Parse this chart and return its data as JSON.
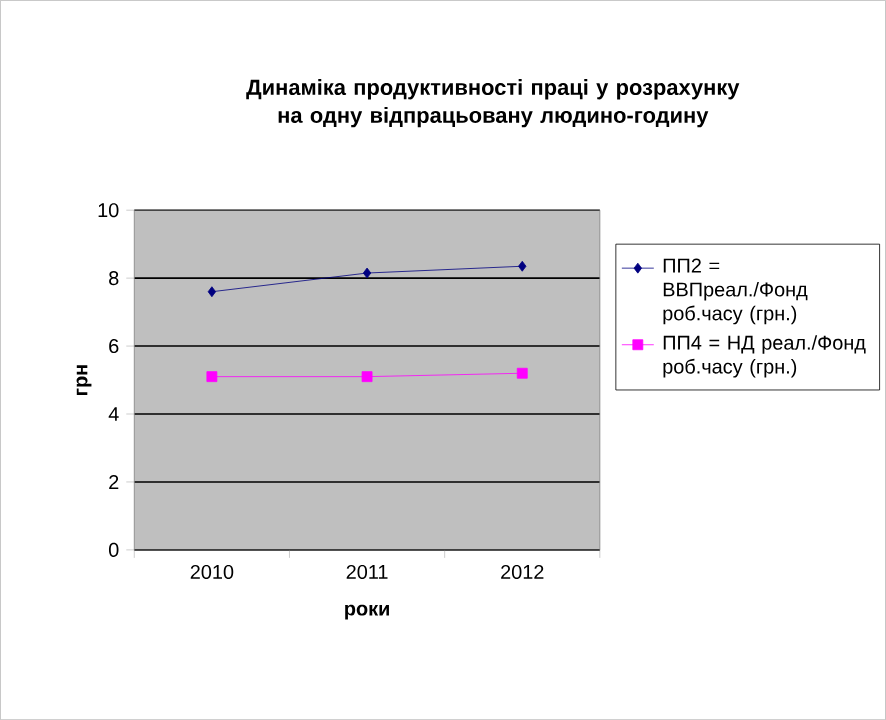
{
  "chart_data": {
    "type": "line",
    "title": "Динаміка продуктивності праці у розрахунку на одну відпрацьовану людино-годину",
    "xlabel": "роки",
    "ylabel": "грн",
    "categories": [
      "2010",
      "2011",
      "2012"
    ],
    "series": [
      {
        "name": "ПП2 = ВВПреал./Фонд роб.часу (грн.)",
        "color": "#000080",
        "marker": "diamond",
        "values": [
          7.6,
          8.15,
          8.35
        ]
      },
      {
        "name": "ПП4 = НД реал./Фонд роб.часу (грн.)",
        "color": "#ff00ff",
        "marker": "square",
        "values": [
          5.1,
          5.1,
          5.2
        ]
      }
    ],
    "ylim": [
      0,
      10
    ],
    "yticks": [
      0,
      2,
      4,
      6,
      8,
      10
    ],
    "grid": "y",
    "legend": "right"
  }
}
